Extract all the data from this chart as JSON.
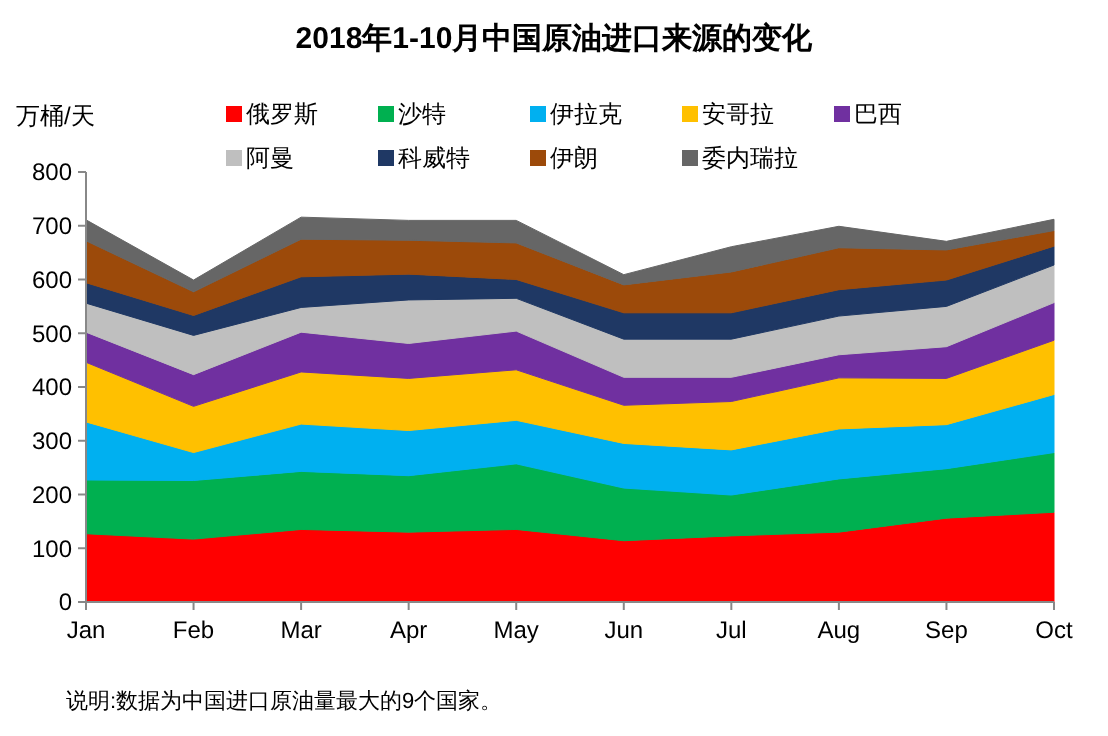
{
  "chart_data": {
    "type": "area",
    "stacked": true,
    "title": "2018年1-10月中国原油进口来源的变化",
    "ylabel": "万桶/天",
    "categories": [
      "Jan",
      "Feb",
      "Mar",
      "Apr",
      "May",
      "Jun",
      "Jul",
      "Aug",
      "Sep",
      "Oct"
    ],
    "ylim": [
      0,
      800
    ],
    "yticks": [
      0,
      100,
      200,
      300,
      400,
      500,
      600,
      700,
      800
    ],
    "grid": false,
    "legend": "top",
    "annotations": [
      "说明:数据为中国进口原油量最大的9个国家。"
    ],
    "series": [
      {
        "name": "俄罗斯",
        "color": "#ff0000",
        "values": [
          127,
          117,
          135,
          130,
          135,
          114,
          123,
          130,
          156,
          167
        ]
      },
      {
        "name": "沙特",
        "color": "#00b050",
        "values": [
          100,
          109,
          108,
          105,
          122,
          98,
          76,
          99,
          92,
          111
        ]
      },
      {
        "name": "伊拉克",
        "color": "#00b0f0",
        "values": [
          108,
          52,
          88,
          84,
          81,
          83,
          84,
          93,
          82,
          108
        ]
      },
      {
        "name": "安哥拉",
        "color": "#ffc000",
        "values": [
          111,
          86,
          97,
          97,
          94,
          71,
          90,
          95,
          86,
          101
        ]
      },
      {
        "name": "巴西",
        "color": "#7030a0",
        "values": [
          56,
          59,
          74,
          65,
          72,
          52,
          45,
          43,
          59,
          70
        ]
      },
      {
        "name": "阿曼",
        "color": "#bfbfbf",
        "values": [
          54,
          73,
          46,
          81,
          61,
          71,
          71,
          72,
          75,
          70
        ]
      },
      {
        "name": "科威特",
        "color": "#1f3864",
        "values": [
          38,
          37,
          57,
          48,
          35,
          49,
          49,
          49,
          49,
          35
        ]
      },
      {
        "name": "伊朗",
        "color": "#9c4a0a",
        "values": [
          78,
          44,
          70,
          63,
          68,
          52,
          76,
          78,
          56,
          29
        ]
      },
      {
        "name": "委内瑞拉",
        "color": "#666666",
        "values": [
          39,
          22,
          41,
          37,
          42,
          19,
          47,
          40,
          16,
          21
        ]
      }
    ]
  }
}
